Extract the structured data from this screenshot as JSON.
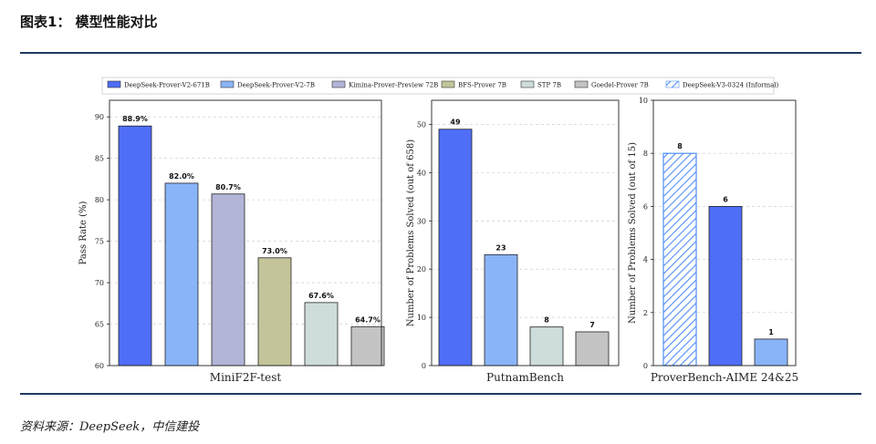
{
  "header": {
    "title": "图表1： 模型性能对比"
  },
  "source": {
    "label": "资料来源：DeepSeek，中信建投"
  },
  "colors": {
    "rule": "#1f3a60",
    "DeepSeek-Prover-V2-671B": "#4f6ef7",
    "DeepSeek-Prover-V2-7B": "#8ab4f8",
    "Kimina-Prover-Preview 72B": "#b2b5d8",
    "BFS-Prover 7B": "#c4c49a",
    "STP 7B": "#cfdcdc",
    "Goedel-Prover 7B": "#c4c4c4",
    "DeepSeek-V3-0324 (Informal)": "#4f8ef7"
  },
  "legend": [
    "DeepSeek-Prover-V2-671B",
    "DeepSeek-Prover-V2-7B",
    "Kimina-Prover-Preview 72B",
    "BFS-Prover 7B",
    "STP 7B",
    "Goedel-Prover 7B",
    "DeepSeek-V3-0324 (Informal)"
  ],
  "chart_data": [
    {
      "type": "bar",
      "title": "",
      "xlabel": "MiniF2F-test",
      "ylabel": "Pass Rate (%)",
      "ylim": [
        60,
        92
      ],
      "yticks": [
        60,
        65,
        70,
        75,
        80,
        85,
        90
      ],
      "grid": true,
      "series": [
        {
          "name": "DeepSeek-Prover-V2-671B",
          "value": 88.9,
          "label": "88.9%"
        },
        {
          "name": "DeepSeek-Prover-V2-7B",
          "value": 82.0,
          "label": "82.0%"
        },
        {
          "name": "Kimina-Prover-Preview 72B",
          "value": 80.7,
          "label": "80.7%"
        },
        {
          "name": "BFS-Prover 7B",
          "value": 73.0,
          "label": "73.0%"
        },
        {
          "name": "STP 7B",
          "value": 67.6,
          "label": "67.6%"
        },
        {
          "name": "Goedel-Prover 7B",
          "value": 64.7,
          "label": "64.7%"
        }
      ]
    },
    {
      "type": "bar",
      "title": "",
      "xlabel": "PutnamBench",
      "ylabel": "Number of Problems Solved (out of 658)",
      "ylim": [
        0,
        55
      ],
      "yticks": [
        0,
        10,
        20,
        30,
        40,
        50
      ],
      "grid": true,
      "series": [
        {
          "name": "DeepSeek-Prover-V2-671B",
          "value": 49,
          "label": "49"
        },
        {
          "name": "DeepSeek-Prover-V2-7B",
          "value": 23,
          "label": "23"
        },
        {
          "name": "STP 7B",
          "value": 8,
          "label": "8"
        },
        {
          "name": "Goedel-Prover 7B",
          "value": 7,
          "label": "7"
        }
      ]
    },
    {
      "type": "bar",
      "title": "",
      "xlabel": "ProverBench-AIME 24&25",
      "ylabel": "Number of Problems Solved (out of 15)",
      "ylim": [
        0,
        10
      ],
      "yticks": [
        0,
        2,
        4,
        6,
        8,
        10
      ],
      "grid": true,
      "series": [
        {
          "name": "DeepSeek-V3-0324 (Informal)",
          "value": 8,
          "label": "8",
          "hatched": true
        },
        {
          "name": "DeepSeek-Prover-V2-671B",
          "value": 6,
          "label": "6"
        },
        {
          "name": "DeepSeek-Prover-V2-7B",
          "value": 1,
          "label": "1"
        }
      ]
    }
  ]
}
